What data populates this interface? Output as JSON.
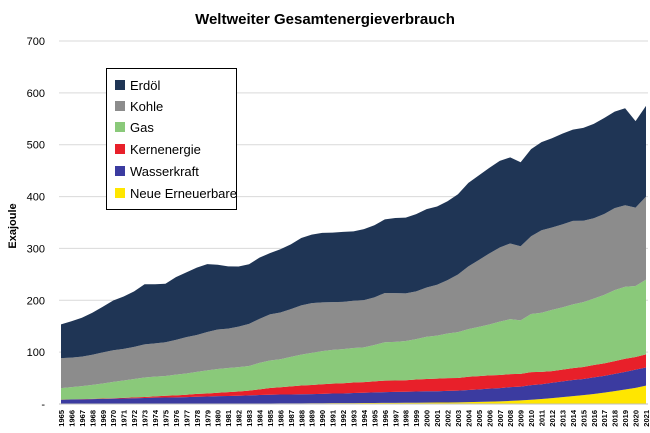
{
  "chart_data": {
    "type": "area",
    "stacked": true,
    "title": "Weltweiter Gesamtenergieverbrauch",
    "xlabel": "",
    "ylabel": "Exajoule",
    "ylim": [
      0,
      700
    ],
    "yticks": [
      "-",
      "100",
      "200",
      "300",
      "400",
      "500",
      "600",
      "700"
    ],
    "grid": true,
    "legend_position": "top-left",
    "categories": [
      "1965",
      "1966",
      "1967",
      "1968",
      "1969",
      "1970",
      "1971",
      "1972",
      "1973",
      "1974",
      "1975",
      "1976",
      "1977",
      "1978",
      "1979",
      "1980",
      "1981",
      "1982",
      "1983",
      "1984",
      "1985",
      "1986",
      "1987",
      "1988",
      "1989",
      "1990",
      "1991",
      "1992",
      "1993",
      "1994",
      "1995",
      "1996",
      "1997",
      "1998",
      "1999",
      "2000",
      "2001",
      "2002",
      "2003",
      "2004",
      "2005",
      "2006",
      "2007",
      "2008",
      "2009",
      "2010",
      "2011",
      "2012",
      "2013",
      "2014",
      "2015",
      "2016",
      "2017",
      "2018",
      "2019",
      "2020",
      "2021"
    ],
    "series": [
      {
        "name": "Neue Erneuerbare",
        "color": "#ffe600",
        "values": [
          0.2,
          0.2,
          0.2,
          0.2,
          0.3,
          0.3,
          0.3,
          0.3,
          0.3,
          0.4,
          0.4,
          0.4,
          0.5,
          0.5,
          0.5,
          0.6,
          0.6,
          0.7,
          0.8,
          0.9,
          1.0,
          1.1,
          1.2,
          1.3,
          1.4,
          1.5,
          1.6,
          1.7,
          1.8,
          1.9,
          2.0,
          2.1,
          2.2,
          2.3,
          2.5,
          2.6,
          2.8,
          3.0,
          3.2,
          3.6,
          4.0,
          4.5,
          5.1,
          6.0,
          7.0,
          8.3,
          9.7,
          11.4,
          13.2,
          15.1,
          17.1,
          19.3,
          22.0,
          24.9,
          28.0,
          31.0,
          35.5
        ]
      },
      {
        "name": "Wasserkraft",
        "color": "#3b3ba0",
        "values": [
          8.0,
          8.4,
          8.7,
          9.1,
          9.6,
          10.0,
          10.4,
          10.8,
          11.2,
          11.9,
          12.2,
          12.4,
          12.8,
          13.5,
          14.0,
          14.5,
          14.8,
          15.2,
          15.9,
          16.4,
          16.8,
          17.1,
          17.2,
          17.6,
          17.7,
          18.1,
          18.6,
          18.6,
          19.4,
          19.7,
          20.4,
          20.8,
          21.2,
          21.2,
          21.5,
          22.0,
          21.8,
          22.3,
          22.5,
          23.5,
          24.3,
          25.1,
          25.5,
          26.5,
          26.6,
          28.0,
          28.5,
          29.7,
          30.5,
          31.1,
          31.0,
          32.0,
          32.3,
          33.3,
          33.9,
          35.3,
          35.0
        ]
      },
      {
        "name": "Kernenergie",
        "color": "#e8202a",
        "values": [
          0.3,
          0.4,
          0.5,
          0.6,
          0.7,
          0.9,
          1.2,
          1.6,
          2.0,
          2.5,
          3.4,
          3.8,
          4.6,
          5.5,
          5.8,
          6.5,
          7.5,
          8.2,
          9.2,
          10.9,
          13.1,
          14.2,
          15.5,
          16.8,
          17.5,
          18.4,
          19.2,
          19.6,
          20.3,
          20.6,
          21.3,
          22.2,
          21.9,
          22.4,
          23.2,
          23.6,
          24.3,
          24.6,
          24.4,
          25.4,
          25.5,
          25.7,
          25.2,
          25.1,
          24.6,
          25.2,
          23.8,
          22.3,
          22.6,
          23.0,
          23.3,
          23.8,
          24.1,
          24.5,
          25.3,
          24.3,
          25.3
        ]
      },
      {
        "name": "Gas",
        "color": "#8ac97a",
        "values": [
          22,
          23.5,
          25,
          27,
          29,
          31.5,
          33.5,
          35.5,
          37.5,
          38,
          38,
          40,
          41,
          42.5,
          44.5,
          46,
          46.5,
          47,
          47.5,
          51,
          53,
          54,
          57,
          59.5,
          62,
          64,
          65,
          66,
          66.5,
          67,
          70,
          74,
          74.5,
          75.5,
          78,
          81.5,
          83,
          86,
          88.5,
          92,
          95,
          98,
          103,
          106,
          103,
          112,
          114,
          118,
          120,
          123,
          125,
          128,
          132,
          137,
          139,
          137,
          144
        ]
      },
      {
        "name": "Kohle",
        "color": "#8c8c8c",
        "values": [
          58,
          57,
          57,
          58,
          60,
          61,
          61,
          62,
          64,
          64,
          65,
          67,
          70,
          71,
          74,
          76,
          76,
          78,
          81,
          85,
          89,
          90,
          92,
          95,
          96,
          94,
          92,
          91,
          91,
          91,
          92,
          95,
          94,
          92,
          92,
          95,
          98,
          103,
          111,
          121,
          129,
          137,
          143,
          146,
          143,
          150,
          159,
          159,
          160,
          161,
          157,
          155,
          156,
          158,
          157,
          151,
          160
        ]
      },
      {
        "name": "Erdöl",
        "color": "#1f3555",
        "values": [
          65,
          70,
          75,
          81,
          88,
          96,
          101,
          107,
          116,
          114,
          113,
          121,
          125,
          130,
          131,
          125,
          120,
          116,
          115,
          118,
          118,
          122,
          125,
          130,
          132,
          134,
          134,
          135,
          134,
          137,
          139,
          142,
          145,
          146,
          149,
          151,
          151,
          152,
          155,
          161,
          163,
          165,
          167,
          166,
          162,
          168,
          170,
          172,
          175,
          176,
          179,
          182,
          185,
          186,
          187,
          167,
          175
        ]
      }
    ]
  }
}
